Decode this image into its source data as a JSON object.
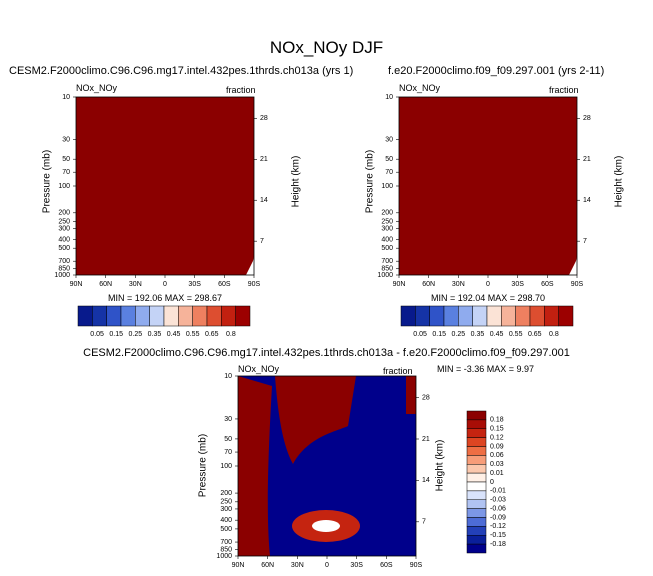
{
  "main_title": "NOx_NOy DJF",
  "colors": {
    "field": "#8b0000",
    "dark_red": "#8b0000",
    "dark_blue": "#00008b",
    "background": "#ffffff"
  },
  "chart_data": [
    {
      "type": "heatmap",
      "panel": "top-left",
      "title": "CESM2.F2000climo.C96.C96.mg17.intel.432pes.1thrds.ch013a (yrs 1)",
      "left_label": "NOx_NOy",
      "right_label": "fraction",
      "xlabel": "",
      "ylabel": "Pressure (mb)",
      "y2label": "Height (km)",
      "x_ticks": [
        "90N",
        "60N",
        "30N",
        "0",
        "30S",
        "60S",
        "90S"
      ],
      "y_ticks": [
        "10",
        "30",
        "50",
        "70",
        "100",
        "200",
        "250",
        "300",
        "400",
        "500",
        "700",
        "850",
        "1000"
      ],
      "height_ticks": [
        "28",
        "21",
        "14",
        "7"
      ],
      "stats": "MIN = 192.06   MAX = 298.67",
      "colorbar_labels": [
        "0.05",
        "0.15",
        "0.25",
        "0.35",
        "0.45",
        "0.55",
        "0.65",
        "0.8"
      ]
    },
    {
      "type": "heatmap",
      "panel": "top-right",
      "title": "f.e20.F2000climo.f09_f09.297.001 (yrs 2-11)",
      "left_label": "NOx_NOy",
      "right_label": "fraction",
      "xlabel": "",
      "ylabel": "Pressure (mb)",
      "y2label": "Height (km)",
      "x_ticks": [
        "90N",
        "60N",
        "30N",
        "0",
        "30S",
        "60S",
        "90S"
      ],
      "y_ticks": [
        "10",
        "30",
        "50",
        "70",
        "100",
        "200",
        "250",
        "300",
        "400",
        "500",
        "700",
        "850",
        "1000"
      ],
      "height_ticks": [
        "28",
        "21",
        "14",
        "7"
      ],
      "stats": "MIN = 192.04   MAX = 298.70",
      "colorbar_labels": [
        "0.05",
        "0.15",
        "0.25",
        "0.35",
        "0.45",
        "0.55",
        "0.65",
        "0.8"
      ]
    },
    {
      "type": "heatmap",
      "panel": "difference",
      "title": "CESM2.F2000climo.C96.C96.mg17.intel.432pes.1thrds.ch013a - f.e20.F2000climo.f09_f09.297.001",
      "left_label": "NOx_NOy",
      "right_label": "fraction",
      "ylabel": "Pressure (mb)",
      "y2label": "Height (km)",
      "x_ticks": [
        "90N",
        "60N",
        "30N",
        "0",
        "30S",
        "60S",
        "90S"
      ],
      "y_ticks": [
        "10",
        "30",
        "50",
        "70",
        "100",
        "200",
        "250",
        "300",
        "400",
        "500",
        "700",
        "850",
        "1000"
      ],
      "height_ticks": [
        "28",
        "21",
        "14",
        "7"
      ],
      "stats": "MIN =  -3.36   MAX =   9.97",
      "colorbar_labels": [
        "0.18",
        "0.15",
        "0.12",
        "0.09",
        "0.06",
        "0.03",
        "0.01",
        "0",
        "-0.01",
        "-0.03",
        "-0.06",
        "-0.09",
        "-0.12",
        "-0.15",
        "-0.18"
      ]
    }
  ]
}
